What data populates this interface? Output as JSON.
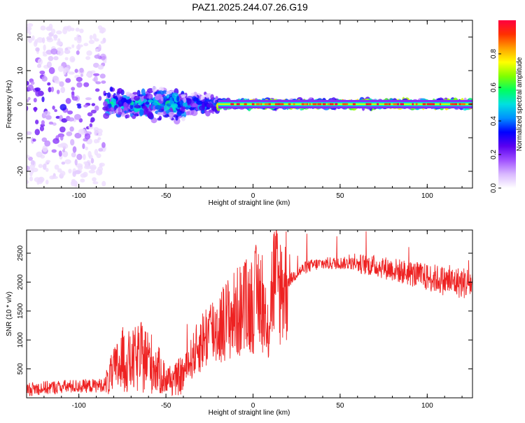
{
  "chart_data": [
    {
      "type": "heatmap",
      "title": "PAZ1.2025.244.07.26.G19",
      "xlabel": "Height of straight line (km)",
      "ylabel": "Frequency (Hz)",
      "xlim": [
        -130,
        126
      ],
      "ylim": [
        -25,
        25
      ],
      "xticks": [
        -100,
        -50,
        0,
        50,
        100
      ],
      "yticks": [
        -20,
        -10,
        0,
        10,
        20
      ],
      "colorbar": {
        "label": "Normalized spectral amplitude",
        "range": [
          0.0,
          1.0
        ],
        "ticks": [
          "0.0",
          "0.2",
          "0.4",
          "0.6",
          "0.8"
        ],
        "colors": [
          "#ffffff",
          "#d9b8ff",
          "#a050ff",
          "#5a00f0",
          "#0000ff",
          "#0090ff",
          "#00e0e0",
          "#00ff60",
          "#80ff00",
          "#ffff00",
          "#ffa000",
          "#ff3000",
          "#ff0040"
        ]
      },
      "bands": [
        {
          "x_range": [
            -130,
            -85
          ],
          "freq_spread": 24,
          "intensity": 0.25
        },
        {
          "x_range": [
            -85,
            -40
          ],
          "freq_spread": 6,
          "intensity": 0.45
        },
        {
          "x_range": [
            -40,
            -20
          ],
          "freq_spread": 4,
          "intensity": 0.4
        },
        {
          "x_range": [
            -20,
            126
          ],
          "freq_spread": 1.5,
          "intensity": 0.75
        }
      ]
    },
    {
      "type": "line",
      "xlabel": "Height of straight line (km)",
      "ylabel": "SNR (10 * v/v)",
      "xlim": [
        -130,
        126
      ],
      "ylim": [
        0,
        2900
      ],
      "xticks": [
        -100,
        -50,
        0,
        50,
        100
      ],
      "yticks": [
        500,
        1000,
        1500,
        2000,
        2500
      ],
      "line_color": "#ee2222",
      "series": [
        {
          "x": [
            -130,
            -120,
            -110,
            -100,
            -90,
            -85,
            -80,
            -75,
            -70,
            -65,
            -60,
            -55,
            -50,
            -45,
            -40,
            -35,
            -30,
            -25,
            -20,
            -15,
            -10,
            -5,
            0,
            5,
            8,
            10,
            12,
            15,
            20,
            25,
            30,
            35,
            40,
            50,
            60,
            70,
            80,
            90,
            100,
            105,
            110,
            115,
            120,
            126
          ],
          "y": [
            150,
            170,
            190,
            200,
            210,
            230,
            450,
            650,
            600,
            700,
            650,
            500,
            320,
            300,
            420,
            700,
            950,
            1150,
            1200,
            1350,
            1450,
            1550,
            1650,
            1850,
            900,
            1700,
            2050,
            1900,
            2000,
            2150,
            2250,
            2300,
            2320,
            2330,
            2320,
            2280,
            2220,
            2150,
            2080,
            2060,
            2020,
            2000,
            1990,
            1980
          ]
        }
      ]
    }
  ]
}
